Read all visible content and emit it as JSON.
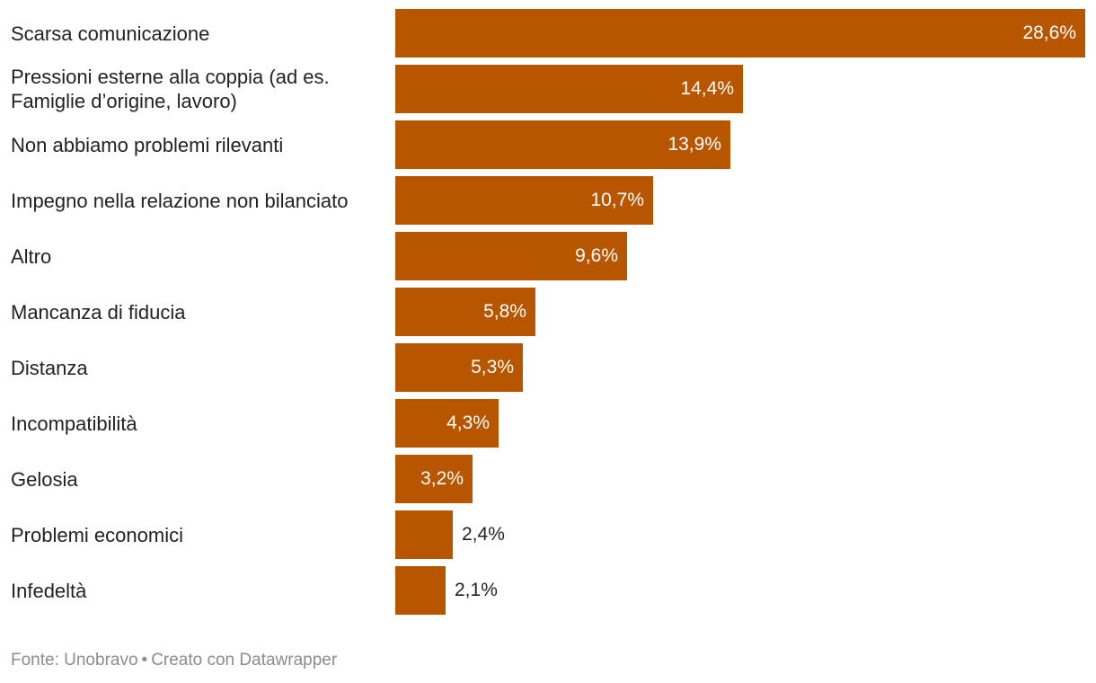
{
  "chart_data": {
    "type": "bar",
    "orientation": "horizontal",
    "categories": [
      "Scarsa comunicazione",
      "Pressioni esterne alla coppia (ad es. Famiglie d’origine, lavoro)",
      "Non abbiamo problemi rilevanti",
      "Impegno nella relazione non bilanciato",
      "Altro",
      "Mancanza di fiducia",
      "Distanza",
      "Incompatibilità",
      "Gelosia",
      "Problemi economici",
      "Infedeltà"
    ],
    "values": [
      28.6,
      14.4,
      13.9,
      10.7,
      9.6,
      5.8,
      5.3,
      4.3,
      3.2,
      2.4,
      2.1
    ],
    "value_labels": [
      "28,6%",
      "14,4%",
      "13,9%",
      "10,7%",
      "9,6%",
      "5,8%",
      "5,3%",
      "4,3%",
      "3,2%",
      "2,4%",
      "2,1%"
    ],
    "unit": "%",
    "bar_color": "#b85600",
    "xlim": [
      0,
      28.6
    ],
    "grid": false,
    "legend": "none"
  },
  "footer": {
    "source": "Fonte: Unobravo",
    "separator": "•",
    "credit": "Creato con Datawrapper"
  }
}
